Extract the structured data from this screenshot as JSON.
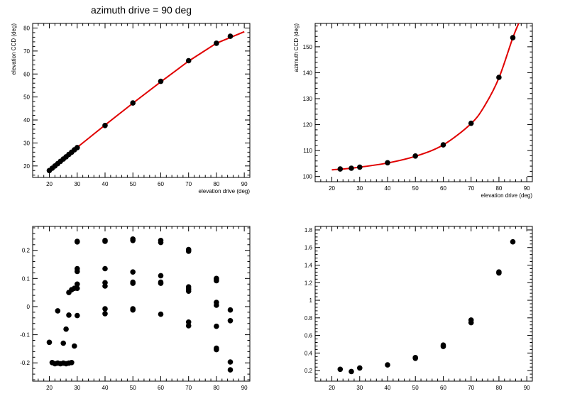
{
  "title": "azimuth drive = 90 deg",
  "chart_data": [
    {
      "type": "scatter",
      "xlabel": "elevation drive (deg)",
      "ylabel": "elevation CCD (deg)",
      "xlim": [
        14,
        92
      ],
      "ylim": [
        15,
        82
      ],
      "xticks": [
        20,
        30,
        40,
        50,
        60,
        70,
        80,
        90
      ],
      "yticks": [
        20,
        30,
        40,
        50,
        60,
        70,
        80
      ],
      "grid": false,
      "fit_color": "#e00000",
      "fit": {
        "type": "line",
        "x": [
          20,
          30,
          40,
          50,
          60,
          70,
          80,
          90
        ],
        "y": [
          18.4,
          28.1,
          37.8,
          47.3,
          56.6,
          65.6,
          73.4,
          78.4
        ]
      },
      "points": {
        "x": [
          20,
          21,
          22,
          23,
          24,
          25,
          26,
          27,
          28,
          29,
          30,
          40,
          50,
          60,
          70,
          80,
          85
        ],
        "y": [
          18.0,
          19.0,
          20.0,
          21.0,
          22.0,
          23.0,
          24.0,
          25.0,
          26.0,
          27.0,
          28.0,
          37.6,
          47.4,
          56.8,
          65.8,
          73.4,
          76.4
        ]
      }
    },
    {
      "type": "scatter",
      "xlabel": "elevation drive (deg)",
      "ylabel": "azimuth CCD (deg)",
      "xlim": [
        14,
        92
      ],
      "ylim": [
        98,
        159
      ],
      "xticks": [
        20,
        30,
        40,
        50,
        60,
        70,
        80,
        90
      ],
      "yticks": [
        100,
        110,
        120,
        130,
        140,
        150
      ],
      "grid": false,
      "fit_color": "#e00000",
      "fit": {
        "type": "curve",
        "x": [
          20,
          25,
          30,
          40,
          50,
          60,
          70,
          75,
          80,
          85,
          87.5
        ],
        "y": [
          102.6,
          103.0,
          103.6,
          105.2,
          107.8,
          112.2,
          120.4,
          127.5,
          138.0,
          153.5,
          160.0
        ]
      },
      "points": {
        "x": [
          23,
          27,
          30,
          40,
          50,
          60,
          70,
          80,
          85
        ],
        "y": [
          102.9,
          103.2,
          103.6,
          105.3,
          107.9,
          112.2,
          120.5,
          138.2,
          153.5
        ]
      }
    },
    {
      "type": "scatter",
      "xlabel": "",
      "ylabel": "",
      "xlim": [
        14,
        92
      ],
      "ylim": [
        -0.265,
        0.285
      ],
      "xticks": [
        20,
        30,
        40,
        50,
        60,
        70,
        80,
        90
      ],
      "yticks": [
        -0.2,
        -0.1,
        0,
        0.1,
        0.2
      ],
      "grid": false,
      "points": {
        "x": [
          20,
          21,
          22,
          23,
          24,
          25,
          26,
          27,
          28,
          23,
          25,
          26,
          27,
          27,
          28,
          29,
          29,
          30,
          30,
          30,
          30,
          30,
          30,
          30,
          40,
          40,
          40,
          40,
          40,
          40,
          40,
          50,
          50,
          50,
          50,
          50,
          50,
          50,
          60,
          60,
          60,
          60,
          60,
          60,
          70,
          70,
          70,
          70,
          70,
          70,
          70,
          70,
          80,
          80,
          80,
          80,
          80,
          80,
          80,
          80,
          85,
          85,
          85,
          85
        ],
        "y": [
          -0.127,
          -0.199,
          -0.203,
          -0.201,
          -0.203,
          -0.201,
          -0.203,
          -0.201,
          -0.199,
          -0.015,
          -0.13,
          -0.08,
          -0.03,
          0.05,
          0.06,
          0.065,
          -0.14,
          -0.032,
          0.065,
          0.08,
          0.125,
          0.135,
          0.23,
          0.232,
          -0.025,
          -0.008,
          0.073,
          0.085,
          0.135,
          0.232,
          0.235,
          -0.012,
          -0.008,
          0.083,
          0.087,
          0.123,
          0.235,
          0.24,
          -0.027,
          0.083,
          0.087,
          0.11,
          0.228,
          0.235,
          -0.068,
          -0.055,
          0.055,
          0.062,
          0.07,
          0.197,
          0.2,
          0.203,
          -0.153,
          -0.148,
          -0.07,
          0.005,
          0.015,
          0.092,
          0.097,
          0.1,
          -0.225,
          -0.197,
          -0.05,
          -0.012
        ]
      }
    },
    {
      "type": "scatter",
      "xlabel": "",
      "ylabel": "",
      "xlim": [
        14,
        92
      ],
      "ylim": [
        0.08,
        1.84
      ],
      "xticks": [
        20,
        30,
        40,
        50,
        60,
        70,
        80,
        90
      ],
      "yticks": [
        0.2,
        0.4,
        0.6,
        0.8,
        1,
        1.2,
        1.4,
        1.6,
        1.8
      ],
      "grid": false,
      "points": {
        "x": [
          23,
          27,
          30,
          40,
          50,
          50,
          60,
          60,
          70,
          70,
          80,
          80,
          85
        ],
        "y": [
          0.215,
          0.19,
          0.23,
          0.265,
          0.34,
          0.348,
          0.475,
          0.49,
          0.745,
          0.775,
          1.31,
          1.322,
          1.665
        ]
      }
    }
  ]
}
